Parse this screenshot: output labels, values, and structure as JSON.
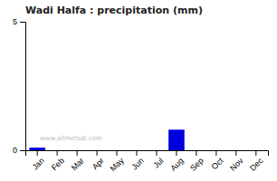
{
  "chart_data": {
    "type": "bar",
    "title": "Wadi Halfa : precipitation (mm)",
    "categories": [
      "Jan",
      "Feb",
      "Mar",
      "Apr",
      "May",
      "Jun",
      "Jul",
      "Aug",
      "Sep",
      "Oct",
      "Nov",
      "Dec"
    ],
    "values": [
      0.1,
      0.0,
      0.0,
      0.0,
      0.0,
      0.0,
      0.0,
      0.8,
      0.0,
      0.0,
      0.0,
      0.0
    ],
    "color": "#0000dd",
    "ylim": [
      0,
      5
    ],
    "yticks": [
      0,
      5
    ],
    "grid": false,
    "annotations": [
      "www.allmetsat.com"
    ]
  }
}
